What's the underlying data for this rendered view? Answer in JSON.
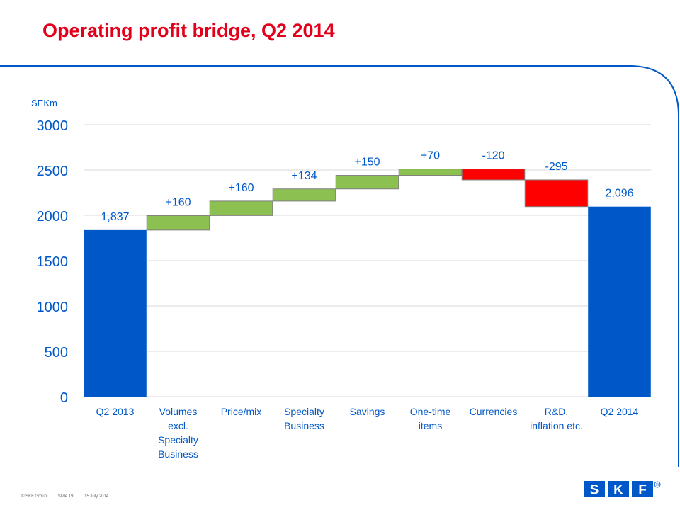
{
  "slide": {
    "title": "Operating profit bridge, Q2 2014",
    "footer": {
      "copyright": "© SKF Group",
      "slide_no": "Slide 19",
      "date": "15 July 2014"
    },
    "logo_text": "SKF®"
  },
  "colors": {
    "title": "#e2001a",
    "total_bar": "#0058c8",
    "increase_bar": "#8cc152",
    "decrease_bar": "#ff0000",
    "frame_line": "#0058c8",
    "grid": "#d9d9d9"
  },
  "chart_data": {
    "type": "bar",
    "subtype": "waterfall",
    "ylabel": "SEKm",
    "ylim": [
      0,
      3000
    ],
    "yticks": [
      0,
      500,
      1000,
      1500,
      2000,
      2500,
      3000
    ],
    "grid": true,
    "legend": "none",
    "categories": [
      [
        "Q2 2013"
      ],
      [
        "Volumes",
        "excl.",
        "Specialty",
        "Business"
      ],
      [
        "Price/mix"
      ],
      [
        "Specialty",
        "Business"
      ],
      [
        "Savings"
      ],
      [
        "One-time",
        "items"
      ],
      [
        "Currencies"
      ],
      [
        "R&D,",
        "inflation etc."
      ],
      [
        "Q2 2014"
      ]
    ],
    "bars": [
      {
        "kind": "total",
        "start": 0,
        "end": 1837,
        "label": "1,837"
      },
      {
        "kind": "increase",
        "start": 1837,
        "end": 1997,
        "label": "+160"
      },
      {
        "kind": "increase",
        "start": 1997,
        "end": 2157,
        "label": "+160"
      },
      {
        "kind": "increase",
        "start": 2157,
        "end": 2291,
        "label": "+134"
      },
      {
        "kind": "increase",
        "start": 2291,
        "end": 2441,
        "label": "+150"
      },
      {
        "kind": "increase",
        "start": 2441,
        "end": 2511,
        "label": "+70"
      },
      {
        "kind": "decrease",
        "start": 2511,
        "end": 2391,
        "label": "-120"
      },
      {
        "kind": "decrease",
        "start": 2391,
        "end": 2096,
        "label": "-295"
      },
      {
        "kind": "total",
        "start": 0,
        "end": 2096,
        "label": "2,096"
      }
    ]
  }
}
